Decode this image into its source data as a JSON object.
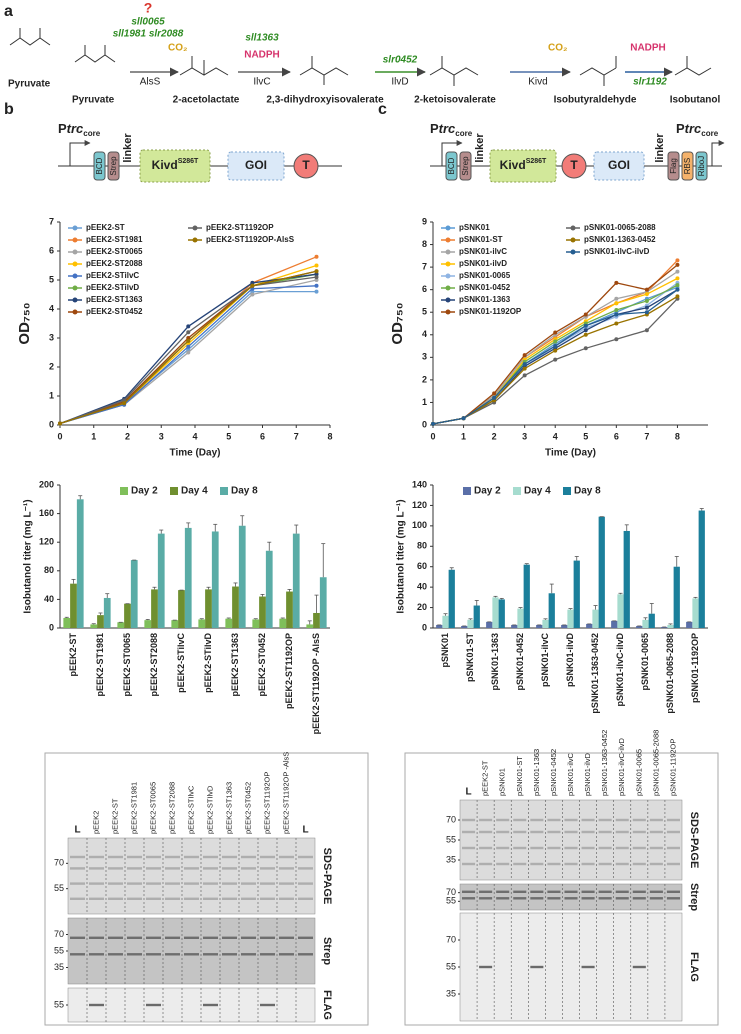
{
  "panel_labels": [
    "a",
    "b",
    "c"
  ],
  "pathway": {
    "compounds": [
      "Pyruvate",
      "Pyruvate",
      "2-acetolactate",
      "2,3-dihydroxyisovalerate",
      "2-ketoisovalerate",
      "Isobutyraldehyde",
      "Isobutanol"
    ],
    "enzymes": [
      "AlsS",
      "IlvC",
      "IlvD",
      "Kivd"
    ],
    "genes": [
      "?",
      "sll0065",
      "sll1981 slr2088",
      "sll1363",
      "slr0452",
      "slr1192"
    ],
    "cofactors": [
      "CO₂",
      "NADPH",
      "CO₂",
      "NADPH"
    ]
  },
  "constructs": [
    {
      "promoters": [
        [
          "P",
          "trc",
          "core"
        ]
      ],
      "parts": [
        "BCD",
        "Strep",
        "linker",
        "Kivd",
        "S286T",
        "GOI",
        "T"
      ]
    },
    {
      "promoters": [
        [
          "P",
          "trc",
          "core"
        ],
        [
          "P",
          "trc",
          "core"
        ]
      ],
      "parts": [
        "BCD",
        "Strep",
        "linker",
        "Kivd",
        "S286T",
        "T",
        "GOI",
        "linker",
        "Flag",
        "RBS",
        "RiboJ"
      ]
    }
  ],
  "chart_data": [
    {
      "type": "line",
      "ylabel": "OD₇₅₀",
      "xlabel": "Time (Day)",
      "x": [
        0,
        1.9,
        3.8,
        5.7,
        7.6
      ],
      "xlim": [
        0,
        8
      ],
      "xticks": [
        0,
        1,
        2,
        3,
        4,
        5,
        6,
        7,
        8
      ],
      "ylim": [
        0,
        7
      ],
      "yticks": [
        0,
        1,
        2,
        3,
        4,
        5,
        6,
        7
      ],
      "series": [
        {
          "name": "pEEK2-ST",
          "color": "#6a9fd4",
          "values": [
            0.05,
            0.75,
            2.6,
            4.6,
            4.6
          ]
        },
        {
          "name": "pEEK2-ST1981",
          "color": "#ed7d31",
          "values": [
            0.05,
            0.8,
            2.9,
            4.9,
            5.8
          ]
        },
        {
          "name": "pEEK2-ST0065",
          "color": "#a5a5a5",
          "values": [
            0.05,
            0.7,
            2.5,
            4.5,
            5.0
          ]
        },
        {
          "name": "pEEK2-ST2088",
          "color": "#ffc000",
          "values": [
            0.05,
            0.75,
            2.8,
            4.8,
            5.5
          ]
        },
        {
          "name": "pEEK2-STilvC",
          "color": "#4472c4",
          "values": [
            0.05,
            0.7,
            2.7,
            4.7,
            4.8
          ]
        },
        {
          "name": "pEEK2-STilvD",
          "color": "#70ad47",
          "values": [
            0.05,
            0.8,
            2.9,
            4.8,
            5.2
          ]
        },
        {
          "name": "pEEK2-ST1363",
          "color": "#264478",
          "values": [
            0.05,
            0.9,
            3.4,
            4.9,
            5.2
          ]
        },
        {
          "name": "pEEK2-ST0452",
          "color": "#9e480e",
          "values": [
            0.05,
            0.8,
            3.0,
            4.8,
            5.3
          ]
        },
        {
          "name": "pEEK2-ST1192OP",
          "color": "#636363",
          "values": [
            0.05,
            0.85,
            3.2,
            4.8,
            5.1
          ]
        },
        {
          "name": "pEEK2-ST1192OP-AlsS",
          "color": "#997300",
          "values": [
            0.05,
            0.75,
            2.9,
            4.8,
            5.3
          ]
        }
      ]
    },
    {
      "type": "line",
      "ylabel": "OD₇₅₀",
      "xlabel": "Time (Day)",
      "x": [
        0,
        1,
        2,
        3,
        4,
        5,
        6,
        7,
        8
      ],
      "xlim": [
        0,
        9
      ],
      "xticks": [
        0,
        1,
        2,
        3,
        4,
        5,
        6,
        7,
        8
      ],
      "ylim": [
        0,
        9
      ],
      "yticks": [
        0,
        1,
        2,
        3,
        4,
        5,
        6,
        7,
        8,
        9
      ],
      "series": [
        {
          "name": "pSNK01",
          "color": "#5b9bd5",
          "values": [
            0.05,
            0.3,
            1.2,
            2.7,
            3.6,
            4.4,
            5.0,
            5.6,
            6.1
          ]
        },
        {
          "name": "pSNK01-ST",
          "color": "#ed7d31",
          "values": [
            0.05,
            0.3,
            1.3,
            3.0,
            3.9,
            4.8,
            5.4,
            5.9,
            7.3
          ]
        },
        {
          "name": "pSNK01-ilvC",
          "color": "#a5a5a5",
          "values": [
            0.05,
            0.3,
            1.3,
            3.0,
            4.0,
            4.8,
            5.6,
            5.9,
            6.8
          ]
        },
        {
          "name": "pSNK01-ilvD",
          "color": "#ffc000",
          "values": [
            0.05,
            0.3,
            1.2,
            2.9,
            3.8,
            4.6,
            5.4,
            5.8,
            6.5
          ]
        },
        {
          "name": "pSNK01-0065",
          "color": "#8fb4e3",
          "values": [
            0.05,
            0.3,
            1.1,
            2.6,
            3.5,
            4.3,
            4.8,
            5.3,
            6.3
          ]
        },
        {
          "name": "pSNK01-0452",
          "color": "#70ad47",
          "values": [
            0.05,
            0.3,
            1.2,
            2.8,
            3.7,
            4.5,
            5.1,
            5.5,
            6.2
          ]
        },
        {
          "name": "pSNK01-1363",
          "color": "#264478",
          "values": [
            0.05,
            0.3,
            1.1,
            2.6,
            3.4,
            4.2,
            4.9,
            5.2,
            6.0
          ]
        },
        {
          "name": "pSNK01-1192OP",
          "color": "#9e480e",
          "values": [
            0.05,
            0.3,
            1.4,
            3.1,
            4.1,
            4.9,
            6.3,
            6.0,
            7.1
          ]
        },
        {
          "name": "pSNK01-0065-2088",
          "color": "#636363",
          "values": [
            0.05,
            0.3,
            1.0,
            2.2,
            2.9,
            3.4,
            3.8,
            4.2,
            5.6
          ]
        },
        {
          "name": "pSNK01-1363-0452",
          "color": "#997300",
          "values": [
            0.05,
            0.3,
            1.1,
            2.5,
            3.3,
            4.0,
            4.5,
            4.9,
            5.7
          ]
        },
        {
          "name": "pSNK01-ilvC-ilvD",
          "color": "#255e91",
          "values": [
            0.05,
            0.3,
            1.2,
            2.7,
            3.5,
            4.4,
            4.9,
            5.0,
            6.0
          ]
        }
      ]
    },
    {
      "type": "bar",
      "ylabel": "Isobutanol titer (mg L⁻¹)",
      "categories": [
        "pEEK2-ST",
        "pEEK2-ST1981",
        "pEEK2-ST0065",
        "pEEK2-ST2088",
        "pEEK2-STilvC",
        "pEEK2-STilvD",
        "pEEK2-ST1363",
        "pEEK2-ST0452",
        "pEEK2-ST1192OP",
        "pEEK2-ST1192OP -AlsS"
      ],
      "ylim": [
        0,
        200
      ],
      "yticks": [
        0,
        40,
        80,
        120,
        160,
        200
      ],
      "series": [
        {
          "name": "Day 2",
          "color": "#7fbf5a",
          "values": [
            14,
            5,
            8,
            11,
            11,
            12,
            13,
            12,
            13,
            5
          ],
          "errors": [
            1,
            1,
            0,
            1,
            0,
            1,
            1,
            1,
            1,
            5
          ]
        },
        {
          "name": "Day 4",
          "color": "#6f8f2f",
          "values": [
            62,
            18,
            34,
            54,
            53,
            54,
            58,
            44,
            51,
            21
          ],
          "errors": [
            6,
            3,
            0,
            3,
            0,
            3,
            5,
            3,
            3,
            25
          ]
        },
        {
          "name": "Day 8",
          "color": "#5aaca6",
          "values": [
            180,
            42,
            95,
            132,
            140,
            135,
            143,
            108,
            132,
            71
          ],
          "errors": [
            5,
            6,
            0,
            5,
            7,
            10,
            14,
            12,
            12,
            47
          ]
        }
      ]
    },
    {
      "type": "bar",
      "ylabel": "Isobutanol titer (mg L⁻¹)",
      "categories": [
        "pSNK01",
        "pSNK01-ST",
        "pSNK01-1363",
        "pSNK01-0452",
        "pSNK01-ilvC",
        "pSNK01-ilvD",
        "pSNK01-1363-0452",
        "pSNK01-ilvC-ilvD",
        "pSNK01-0065",
        "pSNK01-0065-2088",
        "pSNK01-1192OP"
      ],
      "ylim": [
        0,
        140
      ],
      "yticks": [
        0,
        20,
        40,
        60,
        80,
        100,
        120,
        140
      ],
      "series": [
        {
          "name": "Day 2",
          "color": "#5a6fa8",
          "values": [
            3,
            2,
            6,
            3,
            3,
            3,
            4,
            7,
            2,
            1,
            6
          ],
          "errors": [
            0,
            0,
            0,
            0,
            0,
            0,
            0,
            0,
            0,
            0,
            0
          ]
        },
        {
          "name": "Day 4",
          "color": "#a6dccf",
          "values": [
            12,
            8,
            30,
            19,
            8,
            18,
            18,
            33,
            8,
            3,
            29
          ],
          "errors": [
            2,
            1,
            1,
            1,
            1,
            1,
            4,
            1,
            2,
            1,
            1
          ]
        },
        {
          "name": "Day 8",
          "color": "#1b7f9b",
          "values": [
            57,
            22,
            28,
            62,
            34,
            66,
            109,
            95,
            14,
            60,
            115
          ],
          "errors": [
            2,
            5,
            1,
            1,
            9,
            4,
            0,
            6,
            10,
            10,
            2
          ]
        }
      ]
    }
  ],
  "gels": [
    {
      "lanes": [
        "L",
        "pEEK2",
        "pEEK2-ST",
        "pEEK2-ST1981",
        "pEEK2-ST0065",
        "pEEK2-ST2088",
        "pEEK2-STIlvC",
        "pEEK2-STIlvD",
        "pEEK2-ST1363",
        "pEEK2-ST0452",
        "pEEK2-ST1192OP",
        "pEEK2-ST1192OP -AlsS",
        "L"
      ],
      "blots": [
        {
          "label": "SDS-PAGE",
          "markers": [
            70,
            55
          ]
        },
        {
          "label": "Strep",
          "markers": [
            70,
            55,
            35
          ]
        },
        {
          "label": "FLAG",
          "markers": [
            55
          ]
        }
      ]
    },
    {
      "lanes": [
        "L",
        "pEEK2-ST",
        "pSNK01",
        "pSNK01-ST",
        "pSNK01-1363",
        "pSNK01-0452",
        "pSNK01-ilvC",
        "pSNK01-ilvD",
        "pSNK01-1363-0452",
        "pSNK01-ilvC-ilvD",
        "pSNK01-0065",
        "pSNK01-0065-2088",
        "pSNK01-1192OP"
      ],
      "blots": [
        {
          "label": "SDS-PAGE",
          "markers": [
            70,
            55,
            35
          ]
        },
        {
          "label": "Strep",
          "markers": [
            70,
            55
          ]
        },
        {
          "label": "FLAG",
          "markers": [
            70,
            55,
            35
          ]
        }
      ]
    }
  ]
}
